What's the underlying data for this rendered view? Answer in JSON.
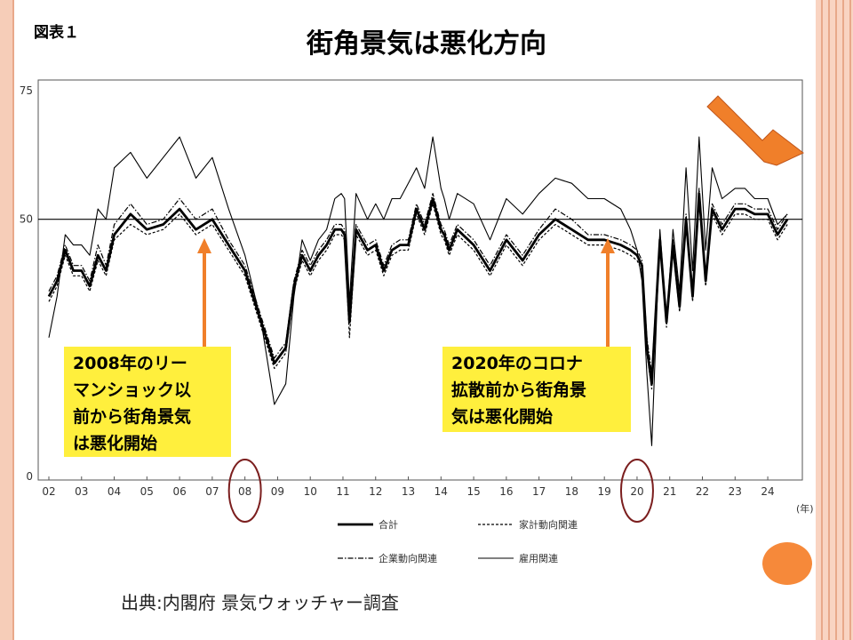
{
  "slide": {
    "figure_label": "図表１",
    "title": "街角景気は悪化方向",
    "source": "出典:内閣府 景気ウォッチャー調査",
    "accent_color": "#f07f2a",
    "callout_color": "#ffef3d"
  },
  "callouts": [
    {
      "lines": [
        "2008年のリー",
        "マンショック以",
        "前から街角景気",
        "は悪化開始"
      ]
    },
    {
      "lines": [
        "2020年のコロナ",
        "拡散前から街角景",
        "気は悪化開始"
      ]
    }
  ],
  "chart_data": {
    "type": "line",
    "title": "",
    "xlabel": "(年)",
    "ylabel": "",
    "ylim": [
      0,
      75
    ],
    "yticks": [
      "0",
      "50",
      "75"
    ],
    "xticks": [
      "02",
      "03",
      "04",
      "05",
      "06",
      "07",
      "08",
      "09",
      "10",
      "11",
      "12",
      "13",
      "14",
      "15",
      "16",
      "17",
      "18",
      "19",
      "20",
      "21",
      "22",
      "23",
      "24"
    ],
    "reference_line": 50,
    "circled_ticks": [
      "08",
      "20"
    ],
    "legend": [
      "合計",
      "家計動向関連",
      "企業動向関連",
      "雇用関連"
    ],
    "series": [
      {
        "name": "合計",
        "style": "thick-solid",
        "x": [
          2002.0,
          2002.25,
          2002.5,
          2002.75,
          2003.0,
          2003.25,
          2003.5,
          2003.75,
          2004.0,
          2004.5,
          2005.0,
          2005.5,
          2006.0,
          2006.5,
          2007.0,
          2007.5,
          2008.0,
          2008.5,
          2008.9,
          2009.25,
          2009.5,
          2009.75,
          2010.0,
          2010.25,
          2010.5,
          2010.75,
          2010.95,
          2011.05,
          2011.2,
          2011.4,
          2011.75,
          2012.0,
          2012.25,
          2012.5,
          2012.75,
          2013.0,
          2013.25,
          2013.5,
          2013.75,
          2014.0,
          2014.1,
          2014.25,
          2014.5,
          2015.0,
          2015.5,
          2016.0,
          2016.5,
          2017.0,
          2017.5,
          2018.0,
          2018.5,
          2019.0,
          2019.5,
          2019.8,
          2020.0,
          2020.15,
          2020.3,
          2020.45,
          2020.7,
          2020.9,
          2021.1,
          2021.3,
          2021.5,
          2021.7,
          2021.9,
          2022.1,
          2022.3,
          2022.6,
          2023.0,
          2023.3,
          2023.6,
          2024.0,
          2024.3,
          2024.6
        ],
        "y": [
          35,
          38,
          44,
          40,
          40,
          37,
          43,
          40,
          47,
          51,
          48,
          49,
          52,
          48,
          50,
          45,
          40,
          30,
          22,
          25,
          37,
          43,
          40,
          43,
          45,
          48,
          48,
          47,
          30,
          48,
          44,
          45,
          40,
          44,
          45,
          45,
          52,
          48,
          54,
          48,
          47,
          44,
          48,
          45,
          40,
          46,
          42,
          47,
          50,
          48,
          46,
          46,
          45,
          44,
          43,
          41,
          25,
          18,
          46,
          30,
          45,
          33,
          50,
          35,
          55,
          38,
          52,
          48,
          52,
          52,
          51,
          51,
          47,
          50
        ]
      },
      {
        "name": "家計動向関連",
        "style": "dotted",
        "x": [
          2002.0,
          2002.25,
          2002.5,
          2002.75,
          2003.0,
          2003.25,
          2003.5,
          2003.75,
          2004.0,
          2004.5,
          2005.0,
          2005.5,
          2006.0,
          2006.5,
          2007.0,
          2007.5,
          2008.0,
          2008.5,
          2008.9,
          2009.25,
          2009.5,
          2009.75,
          2010.0,
          2010.25,
          2010.5,
          2010.75,
          2010.95,
          2011.05,
          2011.2,
          2011.4,
          2011.75,
          2012.0,
          2012.25,
          2012.5,
          2012.75,
          2013.0,
          2013.25,
          2013.5,
          2013.75,
          2014.0,
          2014.1,
          2014.25,
          2014.5,
          2015.0,
          2015.5,
          2016.0,
          2016.5,
          2017.0,
          2017.5,
          2018.0,
          2018.5,
          2019.0,
          2019.5,
          2019.8,
          2020.0,
          2020.15,
          2020.3,
          2020.45,
          2020.7,
          2020.9,
          2021.1,
          2021.3,
          2021.5,
          2021.7,
          2021.9,
          2022.1,
          2022.3,
          2022.6,
          2023.0,
          2023.3,
          2023.6,
          2024.0,
          2024.3,
          2024.6
        ],
        "y": [
          34,
          37,
          43,
          39,
          39,
          36,
          42,
          39,
          46,
          49,
          47,
          48,
          51,
          47,
          49,
          44,
          39,
          29,
          21,
          24,
          36,
          42,
          39,
          42,
          44,
          47,
          47,
          46,
          27,
          47,
          43,
          44,
          39,
          43,
          44,
          44,
          51,
          47,
          53,
          47,
          46,
          43,
          47,
          44,
          39,
          45,
          41,
          46,
          49,
          47,
          45,
          45,
          44,
          43,
          42,
          40,
          24,
          17,
          45,
          29,
          44,
          32,
          49,
          34,
          54,
          37,
          51,
          47,
          51,
          51,
          50,
          50,
          46,
          49
        ]
      },
      {
        "name": "企業動向関連",
        "style": "dash-dot",
        "x": [
          2002.0,
          2002.25,
          2002.5,
          2002.75,
          2003.0,
          2003.25,
          2003.5,
          2003.75,
          2004.0,
          2004.5,
          2005.0,
          2005.5,
          2006.0,
          2006.5,
          2007.0,
          2007.5,
          2008.0,
          2008.5,
          2008.9,
          2009.25,
          2009.5,
          2009.75,
          2010.0,
          2010.25,
          2010.5,
          2010.75,
          2010.95,
          2011.05,
          2011.2,
          2011.4,
          2011.75,
          2012.0,
          2012.25,
          2012.5,
          2012.75,
          2013.0,
          2013.25,
          2013.5,
          2013.75,
          2014.0,
          2014.1,
          2014.25,
          2014.5,
          2015.0,
          2015.5,
          2016.0,
          2016.5,
          2017.0,
          2017.5,
          2018.0,
          2018.5,
          2019.0,
          2019.5,
          2019.8,
          2020.0,
          2020.15,
          2020.3,
          2020.45,
          2020.7,
          2020.9,
          2021.1,
          2021.3,
          2021.5,
          2021.7,
          2021.9,
          2022.1,
          2022.3,
          2022.6,
          2023.0,
          2023.3,
          2023.6,
          2024.0,
          2024.3,
          2024.6
        ],
        "y": [
          36,
          39,
          45,
          41,
          41,
          38,
          45,
          41,
          49,
          53,
          49,
          50,
          54,
          50,
          52,
          46,
          41,
          31,
          23,
          26,
          38,
          44,
          41,
          44,
          46,
          49,
          49,
          48,
          32,
          49,
          45,
          46,
          41,
          45,
          46,
          46,
          53,
          49,
          55,
          49,
          48,
          45,
          49,
          46,
          41,
          47,
          43,
          48,
          52,
          50,
          47,
          47,
          46,
          45,
          44,
          42,
          27,
          20,
          47,
          31,
          46,
          34,
          51,
          36,
          56,
          39,
          53,
          49,
          53,
          53,
          52,
          52,
          48,
          51
        ]
      },
      {
        "name": "雇用関連",
        "style": "thin-solid",
        "x": [
          2002.0,
          2002.25,
          2002.5,
          2002.75,
          2003.0,
          2003.25,
          2003.5,
          2003.75,
          2004.0,
          2004.5,
          2005.0,
          2005.5,
          2006.0,
          2006.5,
          2007.0,
          2007.5,
          2008.0,
          2008.5,
          2008.9,
          2009.25,
          2009.5,
          2009.75,
          2010.0,
          2010.25,
          2010.5,
          2010.75,
          2010.95,
          2011.05,
          2011.2,
          2011.4,
          2011.75,
          2012.0,
          2012.25,
          2012.5,
          2012.75,
          2013.0,
          2013.25,
          2013.5,
          2013.75,
          2014.0,
          2014.1,
          2014.25,
          2014.5,
          2015.0,
          2015.5,
          2016.0,
          2016.5,
          2017.0,
          2017.5,
          2018.0,
          2018.5,
          2019.0,
          2019.5,
          2019.8,
          2020.0,
          2020.15,
          2020.3,
          2020.45,
          2020.7,
          2020.9,
          2021.1,
          2021.3,
          2021.5,
          2021.7,
          2021.9,
          2022.1,
          2022.3,
          2022.6,
          2023.0,
          2023.3,
          2023.6,
          2024.0,
          2024.3,
          2024.6
        ],
        "y": [
          27,
          35,
          47,
          45,
          45,
          43,
          52,
          50,
          60,
          63,
          58,
          62,
          66,
          58,
          62,
          52,
          43,
          30,
          14,
          18,
          35,
          46,
          42,
          46,
          48,
          54,
          55,
          54,
          34,
          55,
          50,
          53,
          50,
          54,
          54,
          57,
          60,
          56,
          66,
          56,
          54,
          50,
          55,
          53,
          46,
          54,
          51,
          55,
          58,
          57,
          54,
          54,
          52,
          48,
          44,
          38,
          20,
          6,
          48,
          30,
          48,
          36,
          60,
          40,
          66,
          44,
          60,
          54,
          56,
          56,
          54,
          54,
          49,
          51
        ]
      }
    ]
  }
}
